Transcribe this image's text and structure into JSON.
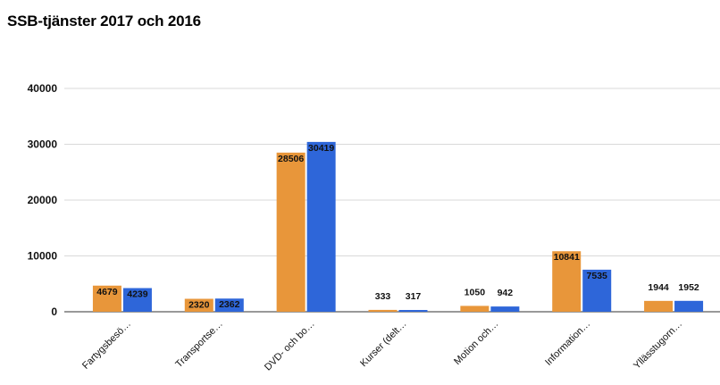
{
  "chart_data": {
    "type": "bar",
    "title": "SSB-tjänster 2017 och 2016",
    "xlabel": "",
    "ylabel": "",
    "ylim": [
      0,
      40000
    ],
    "yticks": [
      0,
      10000,
      20000,
      30000,
      40000
    ],
    "grid": true,
    "legend": "none",
    "categories": [
      "Fartygsbesö…",
      "Transportse…",
      "DVD- och bo…",
      "Kurser (delt…",
      "Motion och…",
      "Information…",
      "Yllässtugorn…"
    ],
    "series": [
      {
        "color": "#E8963A",
        "values": [
          4679,
          2320,
          28506,
          333,
          1050,
          10841,
          1944
        ]
      },
      {
        "color": "#2E66D9",
        "values": [
          4239,
          2362,
          30419,
          317,
          942,
          7535,
          1952
        ]
      }
    ]
  }
}
